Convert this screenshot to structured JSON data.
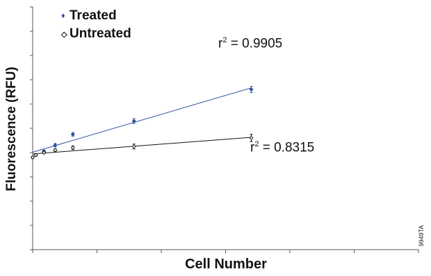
{
  "chart_data": {
    "type": "scatter",
    "xlabel": "Cell Number",
    "ylabel": "Fluorescence (RFU)",
    "xlim": [
      0,
      12
    ],
    "ylim": [
      0,
      20
    ],
    "grid": false,
    "legend_position": "top-left",
    "series": [
      {
        "name": "Treated",
        "color": "#2c4f9e",
        "x": [
          0.1,
          0.35,
          0.7,
          1.25,
          3.15,
          6.8
        ],
        "y": [
          7.8,
          8.1,
          8.6,
          9.5,
          10.6,
          13.2
        ],
        "err": [
          0.1,
          0.1,
          0.15,
          0.15,
          0.2,
          0.25
        ]
      },
      {
        "name": "Untreated",
        "color": "#111111",
        "x": [
          0.0,
          0.1,
          0.35,
          0.7,
          1.25,
          3.15,
          6.8
        ],
        "y": [
          7.6,
          7.8,
          8.0,
          8.2,
          8.4,
          8.5,
          9.2
        ],
        "err": [
          0.1,
          0.1,
          0.1,
          0.1,
          0.15,
          0.2,
          0.3
        ]
      }
    ],
    "fits": [
      {
        "series": "Treated",
        "r2_prefix": "r",
        "r2_exp": "2",
        "r2_value": " = 0.9905",
        "color": "#2c4f9e"
      },
      {
        "series": "Untreated",
        "r2_prefix": "r",
        "r2_exp": "2",
        "r2_value": " = 0.8315",
        "color": "#111111"
      }
    ]
  },
  "figure_id": "9949TA"
}
